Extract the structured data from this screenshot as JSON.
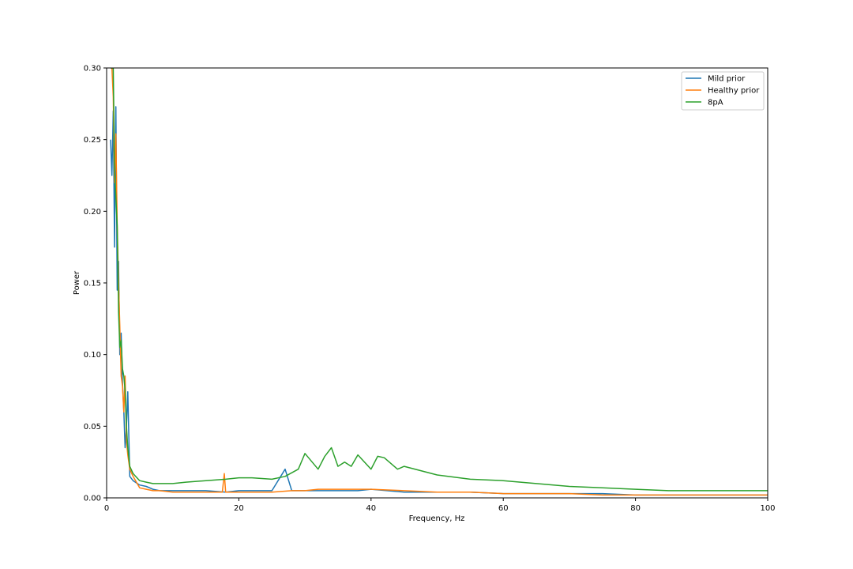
{
  "chart_data": {
    "type": "line",
    "title": "",
    "xlabel": "Frequency, Hz",
    "ylabel": "Power",
    "xlim": [
      0,
      100
    ],
    "ylim": [
      0,
      0.3
    ],
    "x_ticks": [
      0,
      20,
      40,
      60,
      80,
      100
    ],
    "y_ticks": [
      0.0,
      0.05,
      0.1,
      0.15,
      0.2,
      0.25,
      0.3
    ],
    "x_tick_labels": [
      "0",
      "20",
      "40",
      "60",
      "80",
      "100"
    ],
    "y_tick_labels": [
      "0.00",
      "0.05",
      "0.10",
      "0.15",
      "0.20",
      "0.25",
      "0.30"
    ],
    "grid": false,
    "legend": "upper right",
    "series": [
      {
        "name": "Mild prior",
        "color": "#1f77b4",
        "x": [
          0.6,
          0.8,
          1.0,
          1.2,
          1.4,
          1.6,
          1.8,
          2.0,
          2.2,
          2.4,
          2.6,
          2.8,
          3.0,
          3.2,
          3.5,
          4,
          5,
          6,
          7,
          8,
          10,
          12,
          15,
          18,
          20,
          22,
          25,
          27,
          28,
          30,
          33,
          35,
          38,
          40,
          45,
          50,
          55,
          60,
          65,
          70,
          75,
          80,
          85,
          90,
          95,
          100
        ],
        "y": [
          0.25,
          0.225,
          0.27,
          0.175,
          0.273,
          0.145,
          0.165,
          0.1,
          0.115,
          0.08,
          0.06,
          0.035,
          0.05,
          0.074,
          0.015,
          0.012,
          0.009,
          0.008,
          0.006,
          0.005,
          0.005,
          0.005,
          0.005,
          0.004,
          0.005,
          0.005,
          0.005,
          0.02,
          0.005,
          0.005,
          0.005,
          0.005,
          0.005,
          0.006,
          0.004,
          0.004,
          0.004,
          0.003,
          0.003,
          0.003,
          0.003,
          0.002,
          0.002,
          0.002,
          0.002,
          0.002
        ]
      },
      {
        "name": "Healthy prior",
        "color": "#ff7f0e",
        "x": [
          0.6,
          0.8,
          1.0,
          1.2,
          1.4,
          1.6,
          1.8,
          2.0,
          2.2,
          2.4,
          2.6,
          2.8,
          3.0,
          3.2,
          3.5,
          4,
          5,
          6,
          7,
          8,
          10,
          12,
          15,
          17.5,
          17.8,
          18,
          20,
          22,
          25,
          28,
          30,
          32,
          35,
          38,
          40,
          45,
          50,
          55,
          60,
          65,
          70,
          75,
          80,
          85,
          90,
          95,
          100
        ],
        "y": [
          0.3,
          0.3,
          0.28,
          0.22,
          0.254,
          0.19,
          0.15,
          0.12,
          0.085,
          0.078,
          0.06,
          0.085,
          0.04,
          0.03,
          0.02,
          0.015,
          0.007,
          0.006,
          0.005,
          0.005,
          0.004,
          0.004,
          0.004,
          0.004,
          0.017,
          0.004,
          0.004,
          0.004,
          0.004,
          0.005,
          0.005,
          0.006,
          0.006,
          0.006,
          0.006,
          0.005,
          0.004,
          0.004,
          0.003,
          0.003,
          0.003,
          0.002,
          0.002,
          0.002,
          0.002,
          0.002,
          0.002
        ]
      },
      {
        "name": "8pA",
        "color": "#2ca02c",
        "x": [
          0.6,
          0.8,
          1.0,
          1.2,
          1.4,
          1.6,
          1.8,
          2.0,
          2.2,
          2.4,
          2.6,
          2.8,
          3.0,
          3.2,
          3.5,
          4,
          5,
          6,
          7,
          8,
          10,
          12,
          15,
          18,
          20,
          22,
          25,
          27,
          29,
          30,
          32,
          33,
          34,
          35,
          36,
          37,
          38,
          40,
          41,
          42,
          44,
          45,
          50,
          55,
          60,
          65,
          70,
          75,
          80,
          85,
          90,
          95,
          100
        ],
        "y": [
          0.3,
          0.3,
          0.3,
          0.23,
          0.21,
          0.19,
          0.13,
          0.105,
          0.11,
          0.09,
          0.085,
          0.075,
          0.05,
          0.035,
          0.022,
          0.017,
          0.012,
          0.011,
          0.01,
          0.01,
          0.01,
          0.011,
          0.012,
          0.013,
          0.014,
          0.014,
          0.013,
          0.015,
          0.02,
          0.031,
          0.02,
          0.029,
          0.035,
          0.022,
          0.025,
          0.022,
          0.03,
          0.02,
          0.029,
          0.028,
          0.02,
          0.022,
          0.016,
          0.013,
          0.012,
          0.01,
          0.008,
          0.007,
          0.006,
          0.005,
          0.005,
          0.005,
          0.005
        ]
      }
    ]
  }
}
